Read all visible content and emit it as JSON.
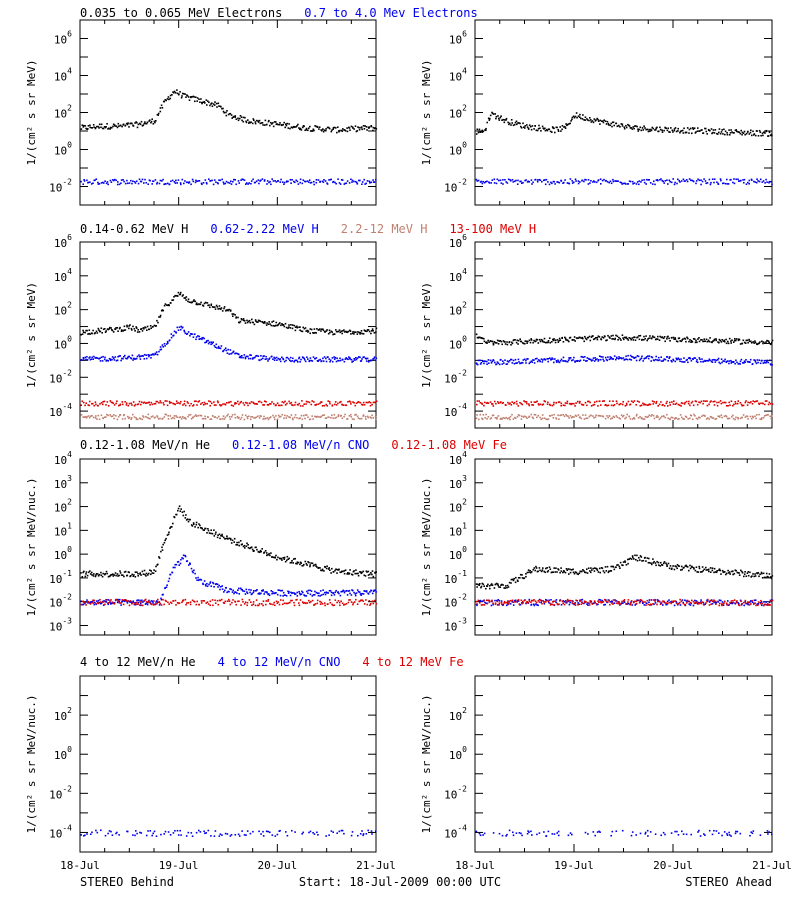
{
  "chart_data": [
    {
      "type": "scatter",
      "row": "electrons",
      "title_segments": [
        {
          "text": "0.035 to 0.065 MeV Electrons",
          "color": "#000000"
        },
        {
          "text": "0.7 to 4.0 Mev Electrons",
          "color": "#0000ee"
        }
      ],
      "ylabel": "1/(cm² s sr MeV)",
      "ylim_log10": [
        -3,
        7
      ],
      "yticks": [
        {
          "exp": "-2",
          "v": -2
        },
        {
          "exp": "0",
          "v": 0
        },
        {
          "exp": "2",
          "v": 2
        },
        {
          "exp": "4",
          "v": 4
        },
        {
          "exp": "6",
          "v": 6
        }
      ],
      "panels": [
        {
          "name": "behind",
          "series": [
            {
              "name": "0.035 to 0.065 MeV Electrons",
              "color": "#000000",
              "x_days": [
                0,
                0.2,
                0.4,
                0.6,
                0.75,
                0.85,
                0.95,
                1.05,
                1.2,
                1.4,
                1.5,
                1.7,
                2.0,
                2.3,
                2.6,
                2.9,
                3.0
              ],
              "log10": [
                1.2,
                1.3,
                1.3,
                1.4,
                1.6,
                2.6,
                3.2,
                2.9,
                2.7,
                2.4,
                1.9,
                1.6,
                1.4,
                1.2,
                1.1,
                1.2,
                1.2
              ]
            },
            {
              "name": "0.7 to 4.0 Mev Electrons",
              "color": "#0000ee",
              "x_days": [
                0,
                3.0
              ],
              "log10": [
                -1.7,
                -1.7
              ]
            }
          ]
        },
        {
          "name": "ahead",
          "series": [
            {
              "name": "0.035 to 0.065 MeV Electrons",
              "color": "#000000",
              "x_days": [
                0,
                0.1,
                0.15,
                0.3,
                0.5,
                0.8,
                0.9,
                1.0,
                1.3,
                1.6,
                2.0,
                2.5,
                3.0
              ],
              "log10": [
                1.0,
                1.1,
                2.0,
                1.6,
                1.3,
                1.1,
                1.2,
                1.9,
                1.5,
                1.2,
                1.1,
                1.0,
                0.9
              ]
            },
            {
              "name": "0.7 to 4.0 Mev Electrons",
              "color": "#0000ee",
              "x_days": [
                0,
                3.0
              ],
              "log10": [
                -1.7,
                -1.7
              ]
            }
          ]
        }
      ]
    },
    {
      "type": "scatter",
      "row": "protons",
      "title_segments": [
        {
          "text": "0.14-0.62 MeV H",
          "color": "#000000"
        },
        {
          "text": "0.62-2.22 MeV H",
          "color": "#0000ee"
        },
        {
          "text": "2.2-12 MeV H",
          "color": "#c08070"
        },
        {
          "text": "13-100 MeV H",
          "color": "#dd0000"
        }
      ],
      "ylabel": "1/(cm² s sr MeV)",
      "ylim_log10": [
        -5,
        6
      ],
      "yticks": [
        {
          "exp": "-4",
          "v": -4
        },
        {
          "exp": "-2",
          "v": -2
        },
        {
          "exp": "0",
          "v": 0
        },
        {
          "exp": "2",
          "v": 2
        },
        {
          "exp": "4",
          "v": 4
        },
        {
          "exp": "6",
          "v": 6
        }
      ],
      "panels": [
        {
          "name": "behind",
          "series": [
            {
              "name": "0.14-0.62 MeV H",
              "color": "#000000",
              "x_days": [
                0,
                0.2,
                0.4,
                0.5,
                0.6,
                0.75,
                0.85,
                1.0,
                1.1,
                1.3,
                1.5,
                1.6,
                2.0,
                2.3,
                2.6,
                3.0
              ],
              "log10": [
                0.7,
                0.8,
                0.9,
                1.0,
                0.8,
                1.0,
                2.2,
                3.0,
                2.6,
                2.3,
                2.0,
                1.4,
                1.2,
                0.8,
                0.7,
                0.8
              ]
            },
            {
              "name": "0.62-2.22 MeV H",
              "color": "#0000ee",
              "x_days": [
                0,
                0.5,
                0.75,
                0.85,
                1.0,
                1.1,
                1.3,
                1.6,
                2.0,
                3.0
              ],
              "log10": [
                -0.9,
                -0.8,
                -0.7,
                0.0,
                1.0,
                0.6,
                0.1,
                -0.7,
                -0.9,
                -0.9
              ]
            },
            {
              "name": "13-100 MeV H",
              "color": "#dd0000",
              "x_days": [
                0,
                3.0
              ],
              "log10": [
                -3.5,
                -3.5
              ]
            },
            {
              "name": "2.2-12 MeV H",
              "color": "#c08070",
              "x_days": [
                0,
                3.0
              ],
              "log10": [
                -4.3,
                -4.3
              ]
            }
          ]
        },
        {
          "name": "ahead",
          "series": [
            {
              "name": "0.14-0.62 MeV H",
              "color": "#000000",
              "x_days": [
                0,
                0.1,
                0.3,
                0.6,
                1.0,
                1.5,
                2.0,
                2.5,
                3.0
              ],
              "log10": [
                0.6,
                0.1,
                0.1,
                0.2,
                0.3,
                0.4,
                0.3,
                0.2,
                0.1
              ]
            },
            {
              "name": "0.62-2.22 MeV H",
              "color": "#0000ee",
              "x_days": [
                0,
                0.5,
                1.0,
                1.5,
                2.0,
                2.5,
                3.0
              ],
              "log10": [
                -1.1,
                -1.0,
                -0.9,
                -0.8,
                -0.9,
                -1.0,
                -1.1
              ]
            },
            {
              "name": "13-100 MeV H",
              "color": "#dd0000",
              "x_days": [
                0,
                3.0
              ],
              "log10": [
                -3.5,
                -3.5
              ]
            },
            {
              "name": "2.2-12 MeV H",
              "color": "#c08070",
              "x_days": [
                0,
                3.0
              ],
              "log10": [
                -4.3,
                -4.3
              ]
            }
          ]
        }
      ]
    },
    {
      "type": "scatter",
      "row": "heavy-low",
      "title_segments": [
        {
          "text": "0.12-1.08 MeV/n He",
          "color": "#000000"
        },
        {
          "text": "0.12-1.08 MeV/n CNO",
          "color": "#0000ee"
        },
        {
          "text": "0.12-1.08 MeV Fe",
          "color": "#dd0000"
        }
      ],
      "ylabel": "1/(cm² s sr MeV/nuc.)",
      "ylim_log10": [
        -3.4,
        4
      ],
      "yticks": [
        {
          "exp": "-3",
          "v": -3
        },
        {
          "exp": "-2",
          "v": -2
        },
        {
          "exp": "-1",
          "v": -1
        },
        {
          "exp": "0",
          "v": 0
        },
        {
          "exp": "1",
          "v": 1
        },
        {
          "exp": "2",
          "v": 2
        },
        {
          "exp": "3",
          "v": 3
        },
        {
          "exp": "4",
          "v": 4
        }
      ],
      "panels": [
        {
          "name": "behind",
          "series": [
            {
              "name": "0.12-1.08 MeV/n He",
              "color": "#000000",
              "x_days": [
                0,
                0.3,
                0.6,
                0.75,
                0.85,
                1.0,
                1.1,
                1.3,
                1.6,
                2.0,
                2.3,
                2.6,
                3.0
              ],
              "log10": [
                -0.8,
                -0.8,
                -0.8,
                -0.7,
                0.6,
                2.0,
                1.4,
                1.0,
                0.5,
                -0.1,
                -0.4,
                -0.7,
                -0.8
              ]
            },
            {
              "name": "0.12-1.08 MeV/n CNO",
              "color": "#0000ee",
              "x_days": [
                0,
                0.8,
                0.95,
                1.05,
                1.2,
                1.5,
                2.0,
                3.0
              ],
              "log10": [
                -2.0,
                -2.0,
                -0.5,
                -0.1,
                -1.1,
                -1.5,
                -1.6,
                -1.6
              ]
            },
            {
              "name": "0.12-1.08 MeV Fe",
              "color": "#dd0000",
              "x_days": [
                0,
                3.0
              ],
              "log10": [
                -2.0,
                -2.0
              ]
            }
          ]
        },
        {
          "name": "ahead",
          "series": [
            {
              "name": "0.12-1.08 MeV/n He",
              "color": "#000000",
              "x_days": [
                0,
                0.3,
                0.6,
                1.0,
                1.4,
                1.6,
                2.0,
                2.5,
                3.0
              ],
              "log10": [
                -1.3,
                -1.3,
                -0.6,
                -0.7,
                -0.6,
                -0.1,
                -0.5,
                -0.7,
                -0.9
              ]
            },
            {
              "name": "0.12-1.08 MeV/n CNO",
              "color": "#0000ee",
              "x_days": [
                0,
                3.0
              ],
              "log10": [
                -2.0,
                -2.0
              ]
            },
            {
              "name": "0.12-1.08 MeV Fe",
              "color": "#dd0000",
              "x_days": [
                0,
                3.0
              ],
              "log10": [
                -2.0,
                -2.0
              ]
            }
          ]
        }
      ]
    },
    {
      "type": "scatter",
      "row": "heavy-high",
      "title_segments": [
        {
          "text": "4 to 12 MeV/n He",
          "color": "#000000"
        },
        {
          "text": "4 to 12 MeV/n CNO",
          "color": "#0000ee"
        },
        {
          "text": "4 to 12 MeV Fe",
          "color": "#dd0000"
        }
      ],
      "ylabel": "1/(cm² s sr MeV/nuc.)",
      "ylim_log10": [
        -5,
        4
      ],
      "yticks": [
        {
          "exp": "-4",
          "v": -4
        },
        {
          "exp": "-2",
          "v": -2
        },
        {
          "exp": "0",
          "v": 0
        },
        {
          "exp": "2",
          "v": 2
        }
      ],
      "panels": [
        {
          "name": "behind",
          "series": [
            {
              "name": "4 to 12 MeV/n CNO",
              "color": "#0000ee",
              "x_days": [
                0,
                3.0
              ],
              "log10": [
                -4.0,
                -4.0
              ]
            }
          ]
        },
        {
          "name": "ahead",
          "series": [
            {
              "name": "4 to 12 MeV/n CNO",
              "color": "#0000ee",
              "x_days": [
                0,
                3.0
              ],
              "log10": [
                -4.0,
                -4.0
              ]
            }
          ]
        }
      ]
    }
  ],
  "x_axis": {
    "ticks": [
      {
        "label": "18-Jul",
        "v": 0
      },
      {
        "label": "19-Jul",
        "v": 1
      },
      {
        "label": "20-Jul",
        "v": 2
      },
      {
        "label": "21-Jul",
        "v": 3
      }
    ],
    "xlim_days": [
      0,
      3
    ]
  },
  "footer": {
    "left": "STEREO Behind",
    "center": "Start: 18-Jul-2009 00:00 UTC",
    "right": "STEREO Ahead"
  }
}
